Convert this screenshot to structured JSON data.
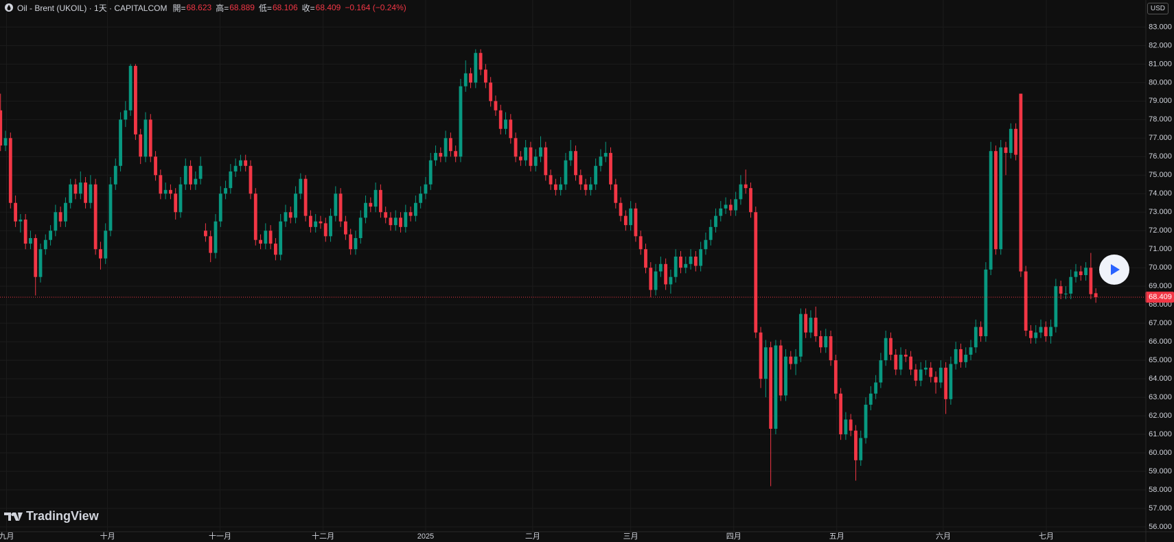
{
  "header": {
    "symbol": "Oil - Brent (UKOIL) · 1天 · CAPITALCOM",
    "open_label": "開=",
    "high_label": "高=",
    "low_label": "低=",
    "close_label": "收=",
    "change": "−0.164 (−0.24%)"
  },
  "currency": "USD",
  "brand": "TradingView",
  "chart_data": {
    "type": "candlestick",
    "colors": {
      "up": "#089981",
      "down": "#f23645"
    },
    "grid": true,
    "xlim": [
      -0.1,
      229
    ],
    "ylim": [
      55.74,
      84.46
    ],
    "xticks": [
      {
        "value": 1.2,
        "label": "九月"
      },
      {
        "value": 21.4,
        "label": "十月"
      },
      {
        "value": 43.9,
        "label": "十一月"
      },
      {
        "value": 64.5,
        "label": "十二月"
      },
      {
        "value": 85,
        "label": "2025"
      },
      {
        "value": 106.4,
        "label": "二月"
      },
      {
        "value": 126,
        "label": "三月"
      },
      {
        "value": 146.6,
        "label": "四月"
      },
      {
        "value": 167.2,
        "label": "五月"
      },
      {
        "value": 188.5,
        "label": "六月"
      },
      {
        "value": 209.1,
        "label": "七月"
      }
    ],
    "yticks": [
      {
        "value": 56,
        "label": "56.000"
      },
      {
        "value": 57,
        "label": "57.000"
      },
      {
        "value": 58,
        "label": "58.000"
      },
      {
        "value": 59,
        "label": "59.000"
      },
      {
        "value": 60,
        "label": "60.000"
      },
      {
        "value": 61,
        "label": "61.000"
      },
      {
        "value": 62,
        "label": "62.000"
      },
      {
        "value": 63,
        "label": "63.000"
      },
      {
        "value": 64,
        "label": "64.000"
      },
      {
        "value": 65,
        "label": "65.000"
      },
      {
        "value": 66,
        "label": "66.000"
      },
      {
        "value": 67,
        "label": "67.000"
      },
      {
        "value": 68,
        "label": "68.000"
      },
      {
        "value": 69,
        "label": "69.000"
      },
      {
        "value": 70,
        "label": "70.000"
      },
      {
        "value": 71,
        "label": "71.000"
      },
      {
        "value": 72,
        "label": "72.000"
      },
      {
        "value": 73,
        "label": "73.000"
      },
      {
        "value": 74,
        "label": "74.000"
      },
      {
        "value": 75,
        "label": "75.000"
      },
      {
        "value": 76,
        "label": "76.000"
      },
      {
        "value": 77,
        "label": "77.000"
      },
      {
        "value": 78,
        "label": "78.000"
      },
      {
        "value": 79,
        "label": "79.000"
      },
      {
        "value": 80,
        "label": "80.000"
      },
      {
        "value": 81,
        "label": "81.000"
      },
      {
        "value": 82,
        "label": "82.000"
      },
      {
        "value": 83,
        "label": "83.000"
      }
    ],
    "candles": [
      [
        78.5,
        79.4,
        76.3,
        76.6
      ],
      [
        76.6,
        77.4,
        76.3,
        77.0
      ],
      [
        77.0,
        77.3,
        73.2,
        73.5
      ],
      [
        73.5,
        73.9,
        72.2,
        72.5
      ],
      [
        72.5,
        72.9,
        71.9,
        72.6
      ],
      [
        72.6,
        72.9,
        71.0,
        71.3
      ],
      [
        71.3,
        72.0,
        71.0,
        71.6
      ],
      [
        71.6,
        71.8,
        68.5,
        69.5
      ],
      [
        69.5,
        71.3,
        69.2,
        71.0
      ],
      [
        71.0,
        71.8,
        70.7,
        71.5
      ],
      [
        71.5,
        72.3,
        71.2,
        72.0
      ],
      [
        72.0,
        73.4,
        71.7,
        73.0
      ],
      [
        73.0,
        73.3,
        72.2,
        72.5
      ],
      [
        72.5,
        73.8,
        72.2,
        73.5
      ],
      [
        73.5,
        74.8,
        73.2,
        74.5
      ],
      [
        74.5,
        74.8,
        73.7,
        74.0
      ],
      [
        74.0,
        75.2,
        73.7,
        74.6
      ],
      [
        74.6,
        74.9,
        73.2,
        73.5
      ],
      [
        73.5,
        75.0,
        73.2,
        74.5
      ],
      [
        74.5,
        74.8,
        70.7,
        71.0
      ],
      [
        71.0,
        71.4,
        69.9,
        70.5
      ],
      [
        70.5,
        72.4,
        70.2,
        72.0
      ],
      [
        72.0,
        74.9,
        71.7,
        74.5
      ],
      [
        74.5,
        75.9,
        74.2,
        75.5
      ],
      [
        75.5,
        78.4,
        75.2,
        78.0
      ],
      [
        78.0,
        79.0,
        77.6,
        78.5
      ],
      [
        78.5,
        81.0,
        78.2,
        80.9
      ],
      [
        80.9,
        81.0,
        76.9,
        77.2
      ],
      [
        77.2,
        77.5,
        75.6,
        76.0
      ],
      [
        76.0,
        78.4,
        75.7,
        78.0
      ],
      [
        78.0,
        78.3,
        75.7,
        76.0
      ],
      [
        76.0,
        76.3,
        74.7,
        75.0
      ],
      [
        75.0,
        75.3,
        73.7,
        74.0
      ],
      [
        74.0,
        74.6,
        73.7,
        74.2
      ],
      [
        74.2,
        74.5,
        73.7,
        74.0
      ],
      [
        74.0,
        74.3,
        72.6,
        73.0
      ],
      [
        73.0,
        74.9,
        72.7,
        74.5
      ],
      [
        74.5,
        75.9,
        74.2,
        75.5
      ],
      [
        75.5,
        75.8,
        74.2,
        74.5
      ],
      [
        74.5,
        75.2,
        74.2,
        74.8
      ],
      [
        74.8,
        76.0,
        74.5,
        75.5
      ],
      [
        72.0,
        72.4,
        71.4,
        71.7
      ],
      [
        71.7,
        72.0,
        70.3,
        70.8
      ],
      [
        70.8,
        72.9,
        70.5,
        72.5
      ],
      [
        72.5,
        74.4,
        72.2,
        74.0
      ],
      [
        74.0,
        74.7,
        73.7,
        74.3
      ],
      [
        74.3,
        75.6,
        74.0,
        75.2
      ],
      [
        75.2,
        75.9,
        74.9,
        75.5
      ],
      [
        75.5,
        76.1,
        75.2,
        75.8
      ],
      [
        75.8,
        76.1,
        75.2,
        75.5
      ],
      [
        75.5,
        75.8,
        73.7,
        74.0
      ],
      [
        74.0,
        74.3,
        71.2,
        71.5
      ],
      [
        71.5,
        71.8,
        71.0,
        71.3
      ],
      [
        71.3,
        72.4,
        71.0,
        72.0
      ],
      [
        72.0,
        72.3,
        71.0,
        71.3
      ],
      [
        71.3,
        71.6,
        70.4,
        70.7
      ],
      [
        70.7,
        72.9,
        70.4,
        72.5
      ],
      [
        72.5,
        73.4,
        72.2,
        73.0
      ],
      [
        73.0,
        73.3,
        72.4,
        72.7
      ],
      [
        72.7,
        74.4,
        72.4,
        74.0
      ],
      [
        74.0,
        75.1,
        73.7,
        74.8
      ],
      [
        74.8,
        75.0,
        72.5,
        72.8
      ],
      [
        72.8,
        73.1,
        71.9,
        72.2
      ],
      [
        72.2,
        72.9,
        71.9,
        72.5
      ],
      [
        72.5,
        72.8,
        72.1,
        72.4
      ],
      [
        72.4,
        72.7,
        71.4,
        71.7
      ],
      [
        71.7,
        73.2,
        71.4,
        72.8
      ],
      [
        72.8,
        74.4,
        72.5,
        74.0
      ],
      [
        74.0,
        74.3,
        72.2,
        72.5
      ],
      [
        72.5,
        72.8,
        71.5,
        71.8
      ],
      [
        71.8,
        72.1,
        70.7,
        71.0
      ],
      [
        71.0,
        72.0,
        70.7,
        71.6
      ],
      [
        71.6,
        73.1,
        71.3,
        72.7
      ],
      [
        72.7,
        73.9,
        72.4,
        73.5
      ],
      [
        73.5,
        73.8,
        73.0,
        73.3
      ],
      [
        73.3,
        74.6,
        73.0,
        74.2
      ],
      [
        74.2,
        74.5,
        72.7,
        73.0
      ],
      [
        73.0,
        73.3,
        72.4,
        72.7
      ],
      [
        72.7,
        73.0,
        72.0,
        72.3
      ],
      [
        72.3,
        73.1,
        72.0,
        72.7
      ],
      [
        72.7,
        73.0,
        71.9,
        72.2
      ],
      [
        72.2,
        73.4,
        71.9,
        73.0
      ],
      [
        73.0,
        73.3,
        72.5,
        72.8
      ],
      [
        72.8,
        73.9,
        72.5,
        73.5
      ],
      [
        73.5,
        74.4,
        73.2,
        74.0
      ],
      [
        74.0,
        74.9,
        73.7,
        74.5
      ],
      [
        74.5,
        76.2,
        74.2,
        75.8
      ],
      [
        75.8,
        76.6,
        75.5,
        76.2
      ],
      [
        76.2,
        76.5,
        75.7,
        76.0
      ],
      [
        76.0,
        77.4,
        75.7,
        77.0
      ],
      [
        77.0,
        77.3,
        76.0,
        76.3
      ],
      [
        76.3,
        76.6,
        75.7,
        76.0
      ],
      [
        76.0,
        80.2,
        75.7,
        79.8
      ],
      [
        79.8,
        81.2,
        79.5,
        80.5
      ],
      [
        80.5,
        80.8,
        79.7,
        80.0
      ],
      [
        80.0,
        81.8,
        79.7,
        81.6
      ],
      [
        81.6,
        81.8,
        80.4,
        80.7
      ],
      [
        80.7,
        81.0,
        79.7,
        80.0
      ],
      [
        80.0,
        80.3,
        78.7,
        79.0
      ],
      [
        79.0,
        79.3,
        78.2,
        78.5
      ],
      [
        78.5,
        78.8,
        77.2,
        77.5
      ],
      [
        77.5,
        78.4,
        77.2,
        78.0
      ],
      [
        78.0,
        78.3,
        76.7,
        77.0
      ],
      [
        77.0,
        77.3,
        75.7,
        76.0
      ],
      [
        76.0,
        76.3,
        75.5,
        75.8
      ],
      [
        75.8,
        76.9,
        75.5,
        76.5
      ],
      [
        76.5,
        76.8,
        75.2,
        75.5
      ],
      [
        75.5,
        76.4,
        75.2,
        76.0
      ],
      [
        76.0,
        77.1,
        75.7,
        76.5
      ],
      [
        76.5,
        76.8,
        74.7,
        75.0
      ],
      [
        75.0,
        75.3,
        74.2,
        74.5
      ],
      [
        74.5,
        74.8,
        73.9,
        74.2
      ],
      [
        74.2,
        74.9,
        73.9,
        74.5
      ],
      [
        74.5,
        76.2,
        74.2,
        75.8
      ],
      [
        75.8,
        76.9,
        75.5,
        76.3
      ],
      [
        76.3,
        76.6,
        74.7,
        75.0
      ],
      [
        75.0,
        75.3,
        74.2,
        74.5
      ],
      [
        74.5,
        74.8,
        73.9,
        74.2
      ],
      [
        74.2,
        74.9,
        73.9,
        74.5
      ],
      [
        74.5,
        75.9,
        74.2,
        75.5
      ],
      [
        75.5,
        76.4,
        75.2,
        76.0
      ],
      [
        76.0,
        76.8,
        75.7,
        76.2
      ],
      [
        76.2,
        76.5,
        74.2,
        74.5
      ],
      [
        74.5,
        74.8,
        73.2,
        73.5
      ],
      [
        73.5,
        73.8,
        72.5,
        72.8
      ],
      [
        72.8,
        73.1,
        72.0,
        72.3
      ],
      [
        72.3,
        73.6,
        72.0,
        73.2
      ],
      [
        73.2,
        73.5,
        71.4,
        71.7
      ],
      [
        71.7,
        72.0,
        70.7,
        71.0
      ],
      [
        71.0,
        71.3,
        69.7,
        70.0
      ],
      [
        70.0,
        70.3,
        68.4,
        68.8
      ],
      [
        68.8,
        70.2,
        68.5,
        69.8
      ],
      [
        69.8,
        70.6,
        69.5,
        70.2
      ],
      [
        70.2,
        70.5,
        68.8,
        69.1
      ],
      [
        69.1,
        69.9,
        68.6,
        69.5
      ],
      [
        69.5,
        71.0,
        69.2,
        70.6
      ],
      [
        70.6,
        70.9,
        69.7,
        70.0
      ],
      [
        70.0,
        70.6,
        69.7,
        70.2
      ],
      [
        70.2,
        71.0,
        69.9,
        70.6
      ],
      [
        70.6,
        70.9,
        69.8,
        70.1
      ],
      [
        70.1,
        71.4,
        69.8,
        71.0
      ],
      [
        71.0,
        71.9,
        70.7,
        71.5
      ],
      [
        71.5,
        72.6,
        71.2,
        72.2
      ],
      [
        72.2,
        73.2,
        71.9,
        72.8
      ],
      [
        72.8,
        73.6,
        72.5,
        73.2
      ],
      [
        73.2,
        73.8,
        72.9,
        73.4
      ],
      [
        73.4,
        73.7,
        72.8,
        73.1
      ],
      [
        73.1,
        74.1,
        72.8,
        73.7
      ],
      [
        73.7,
        75.0,
        73.4,
        74.5
      ],
      [
        74.5,
        75.3,
        74.0,
        74.3
      ],
      [
        74.3,
        74.6,
        72.7,
        73.0
      ],
      [
        73.0,
        73.3,
        66.2,
        66.5
      ],
      [
        66.5,
        66.8,
        63.5,
        64.0
      ],
      [
        64.0,
        66.1,
        63.0,
        65.7
      ],
      [
        65.7,
        66.0,
        58.2,
        61.3
      ],
      [
        61.3,
        66.1,
        61.0,
        65.8
      ],
      [
        65.8,
        66.1,
        62.8,
        63.1
      ],
      [
        63.1,
        65.6,
        62.8,
        65.2
      ],
      [
        65.2,
        65.5,
        64.5,
        64.8
      ],
      [
        64.8,
        65.6,
        64.2,
        65.2
      ],
      [
        65.2,
        67.8,
        64.9,
        67.5
      ],
      [
        67.5,
        67.8,
        66.2,
        66.5
      ],
      [
        66.5,
        67.7,
        66.2,
        67.3
      ],
      [
        67.3,
        67.9,
        66.0,
        66.3
      ],
      [
        66.3,
        66.6,
        65.4,
        65.7
      ],
      [
        65.7,
        66.7,
        65.4,
        66.3
      ],
      [
        66.3,
        66.6,
        64.7,
        65.0
      ],
      [
        65.0,
        65.3,
        62.9,
        63.2
      ],
      [
        63.2,
        63.5,
        60.7,
        61.0
      ],
      [
        61.0,
        62.2,
        60.7,
        61.8
      ],
      [
        61.8,
        62.1,
        60.9,
        61.2
      ],
      [
        61.2,
        61.5,
        58.5,
        59.6
      ],
      [
        59.6,
        61.2,
        59.3,
        60.8
      ],
      [
        60.8,
        63.0,
        60.5,
        62.6
      ],
      [
        62.6,
        63.6,
        62.3,
        63.2
      ],
      [
        63.2,
        64.2,
        62.9,
        63.8
      ],
      [
        63.8,
        65.4,
        63.5,
        65.0
      ],
      [
        65.0,
        66.6,
        64.7,
        66.2
      ],
      [
        66.2,
        66.5,
        65.0,
        65.3
      ],
      [
        65.3,
        65.6,
        64.2,
        64.5
      ],
      [
        64.5,
        65.7,
        64.2,
        65.3
      ],
      [
        65.3,
        65.6,
        64.9,
        65.2
      ],
      [
        65.2,
        65.5,
        64.2,
        64.5
      ],
      [
        64.5,
        64.8,
        63.6,
        63.9
      ],
      [
        63.9,
        64.9,
        63.6,
        64.5
      ],
      [
        64.5,
        65.0,
        64.2,
        64.6
      ],
      [
        64.6,
        64.9,
        63.8,
        64.1
      ],
      [
        64.1,
        64.4,
        63.2,
        63.8
      ],
      [
        63.8,
        65.0,
        63.5,
        64.6
      ],
      [
        64.6,
        64.9,
        62.1,
        62.9
      ],
      [
        62.9,
        65.2,
        62.6,
        64.8
      ],
      [
        64.8,
        66.0,
        64.5,
        65.6
      ],
      [
        65.6,
        65.9,
        64.6,
        64.9
      ],
      [
        64.9,
        65.7,
        64.6,
        65.3
      ],
      [
        65.3,
        66.1,
        65.0,
        65.7
      ],
      [
        65.7,
        67.2,
        65.4,
        66.8
      ],
      [
        66.8,
        67.1,
        66.0,
        66.3
      ],
      [
        66.3,
        70.3,
        66.0,
        69.9
      ],
      [
        69.9,
        76.8,
        69.6,
        76.3
      ],
      [
        76.3,
        76.6,
        70.7,
        71.0
      ],
      [
        71.0,
        76.9,
        70.7,
        76.5
      ],
      [
        76.5,
        76.8,
        75.0,
        76.2
      ],
      [
        76.2,
        77.8,
        75.9,
        77.5
      ],
      [
        77.5,
        77.8,
        75.8,
        76.1
      ],
      [
        79.4,
        79.4,
        69.5,
        69.8
      ],
      [
        69.8,
        70.1,
        66.3,
        66.6
      ],
      [
        66.6,
        66.9,
        65.9,
        66.2
      ],
      [
        66.2,
        66.9,
        65.9,
        66.5
      ],
      [
        66.5,
        67.2,
        66.2,
        66.8
      ],
      [
        66.8,
        67.1,
        66.0,
        66.3
      ],
      [
        66.3,
        67.2,
        65.9,
        66.8
      ],
      [
        66.8,
        69.4,
        66.5,
        69.0
      ],
      [
        69.0,
        69.3,
        68.3,
        68.6
      ],
      [
        68.6,
        69.0,
        68.3,
        68.6
      ],
      [
        68.6,
        69.9,
        68.3,
        69.5
      ],
      [
        69.5,
        70.2,
        69.2,
        69.8
      ],
      [
        69.8,
        70.1,
        69.3,
        69.6
      ],
      [
        69.6,
        70.3,
        69.3,
        70.0
      ],
      [
        70.0,
        70.8,
        68.3,
        68.573
      ],
      [
        68.623,
        68.889,
        68.106,
        68.409
      ]
    ]
  }
}
